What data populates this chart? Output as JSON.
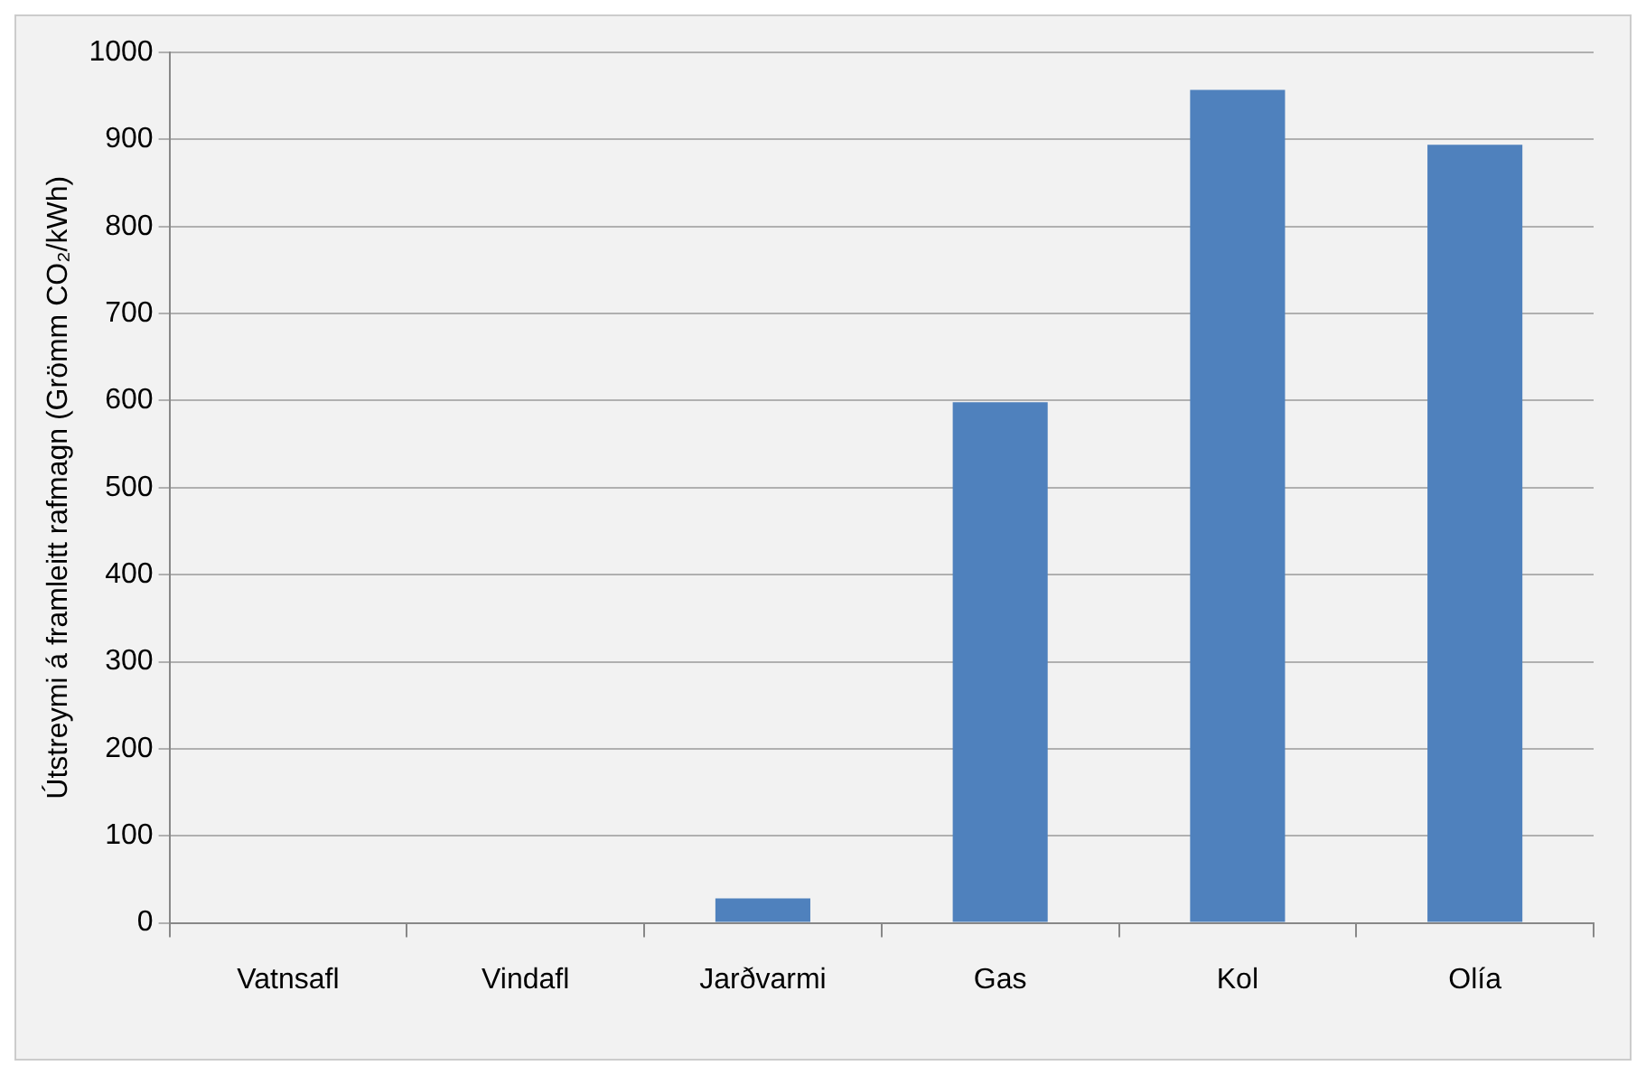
{
  "chart_data": {
    "type": "bar",
    "ylabel": "Útstreymi á framleitt rafmagn (Grömm CO₂/kWh)",
    "categories": [
      "Vatnsafl",
      "Vindafl",
      "Jarðvarmi",
      "Gas",
      "Kol",
      "Olía"
    ],
    "values": [
      0,
      0,
      28,
      598,
      957,
      894
    ],
    "color": "#4f81bd",
    "ylim": [
      0,
      1000
    ],
    "yticks": [
      0,
      100,
      200,
      300,
      400,
      500,
      600,
      700,
      800,
      900,
      1000
    ],
    "grid": "y"
  }
}
